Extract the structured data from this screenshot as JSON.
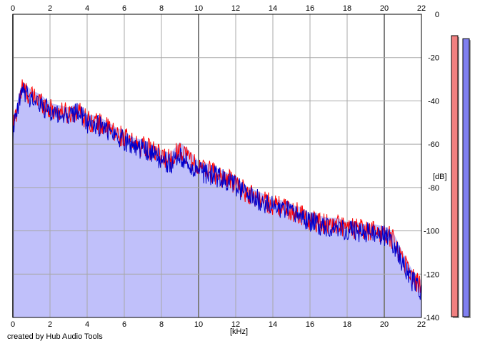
{
  "credit": "created by Hub Audio Tools",
  "chart_data": {
    "type": "area",
    "title": "",
    "xlabel": "[kHz]",
    "ylabel": "[dB]",
    "xlim": [
      0,
      22
    ],
    "ylim": [
      -140,
      0
    ],
    "x_ticks": [
      0,
      2,
      4,
      6,
      8,
      10,
      12,
      14,
      16,
      18,
      20,
      22
    ],
    "y_ticks": [
      0,
      -20,
      -40,
      -60,
      -80,
      -100,
      -120,
      -140
    ],
    "grid": true,
    "colors": {
      "fill": "#c0c0fa",
      "channel_1": "#ff0000",
      "channel_2": "#0000cc",
      "meter_1": "#f08080",
      "meter_2": "#8080f0"
    },
    "x": [
      0,
      0.5,
      1,
      1.5,
      2,
      2.5,
      3,
      3.5,
      4,
      4.5,
      5,
      5.5,
      6,
      6.5,
      7,
      7.5,
      8,
      8.5,
      9,
      9.5,
      10,
      10.5,
      11,
      11.5,
      12,
      12.5,
      13,
      13.5,
      14,
      14.5,
      15,
      15.5,
      16,
      16.5,
      17,
      17.5,
      18,
      18.5,
      19,
      19.5,
      20,
      20.5,
      21,
      21.5,
      22
    ],
    "series": [
      {
        "values": [
          -52,
          -34,
          -38,
          -40,
          -44,
          -45,
          -46,
          -44,
          -49,
          -50,
          -52,
          -55,
          -57,
          -60,
          -61,
          -63,
          -66,
          -67,
          -62,
          -66,
          -71,
          -72,
          -74,
          -76,
          -78,
          -82,
          -84,
          -86,
          -88,
          -89,
          -91,
          -92,
          -95,
          -96,
          -97,
          -97,
          -99,
          -99,
          -100,
          -100,
          -101,
          -104,
          -113,
          -121,
          -126
        ]
      },
      {
        "values": [
          -55,
          -35,
          -39,
          -42,
          -45,
          -46,
          -47,
          -45,
          -50,
          -51,
          -53,
          -56,
          -58,
          -61,
          -62,
          -65,
          -67,
          -69,
          -66,
          -70,
          -72,
          -74,
          -75,
          -77,
          -79,
          -83,
          -85,
          -87,
          -89,
          -90,
          -92,
          -93,
          -96,
          -97,
          -98,
          -98,
          -100,
          -100,
          -101,
          -101,
          -102,
          -106,
          -115,
          -123,
          -128
        ]
      }
    ],
    "meters": [
      {
        "level": 0.93
      },
      {
        "level": 0.92
      }
    ]
  }
}
